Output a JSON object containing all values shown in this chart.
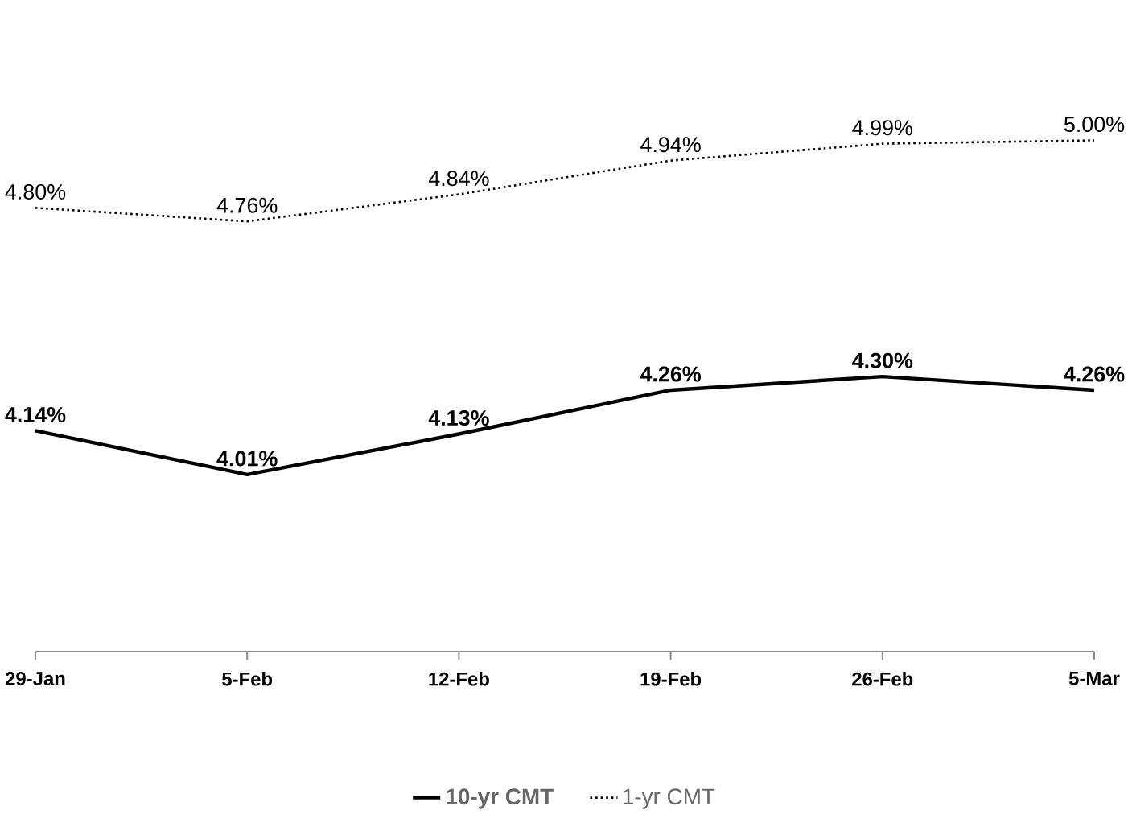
{
  "chart_data": {
    "type": "line",
    "categories": [
      "29-Jan",
      "5-Feb",
      "12-Feb",
      "19-Feb",
      "26-Feb",
      "5-Mar"
    ],
    "series": [
      {
        "name": "10-yr CMT",
        "color": "#000000",
        "line_style": "solid",
        "values": [
          4.14,
          4.01,
          4.13,
          4.26,
          4.3,
          4.26
        ],
        "value_labels": [
          "4.14%",
          "4.01%",
          "4.13%",
          "4.26%",
          "4.30%",
          "4.26%"
        ]
      },
      {
        "name": "1-yr CMT",
        "color": "#000000",
        "line_style": "dotted",
        "values": [
          4.8,
          4.76,
          4.84,
          4.94,
          4.99,
          5.0
        ],
        "value_labels": [
          "4.80%",
          "4.76%",
          "4.84%",
          "4.94%",
          "4.99%",
          "5.00%"
        ]
      }
    ],
    "legend": "bottom",
    "grid": false,
    "marker": "none"
  }
}
